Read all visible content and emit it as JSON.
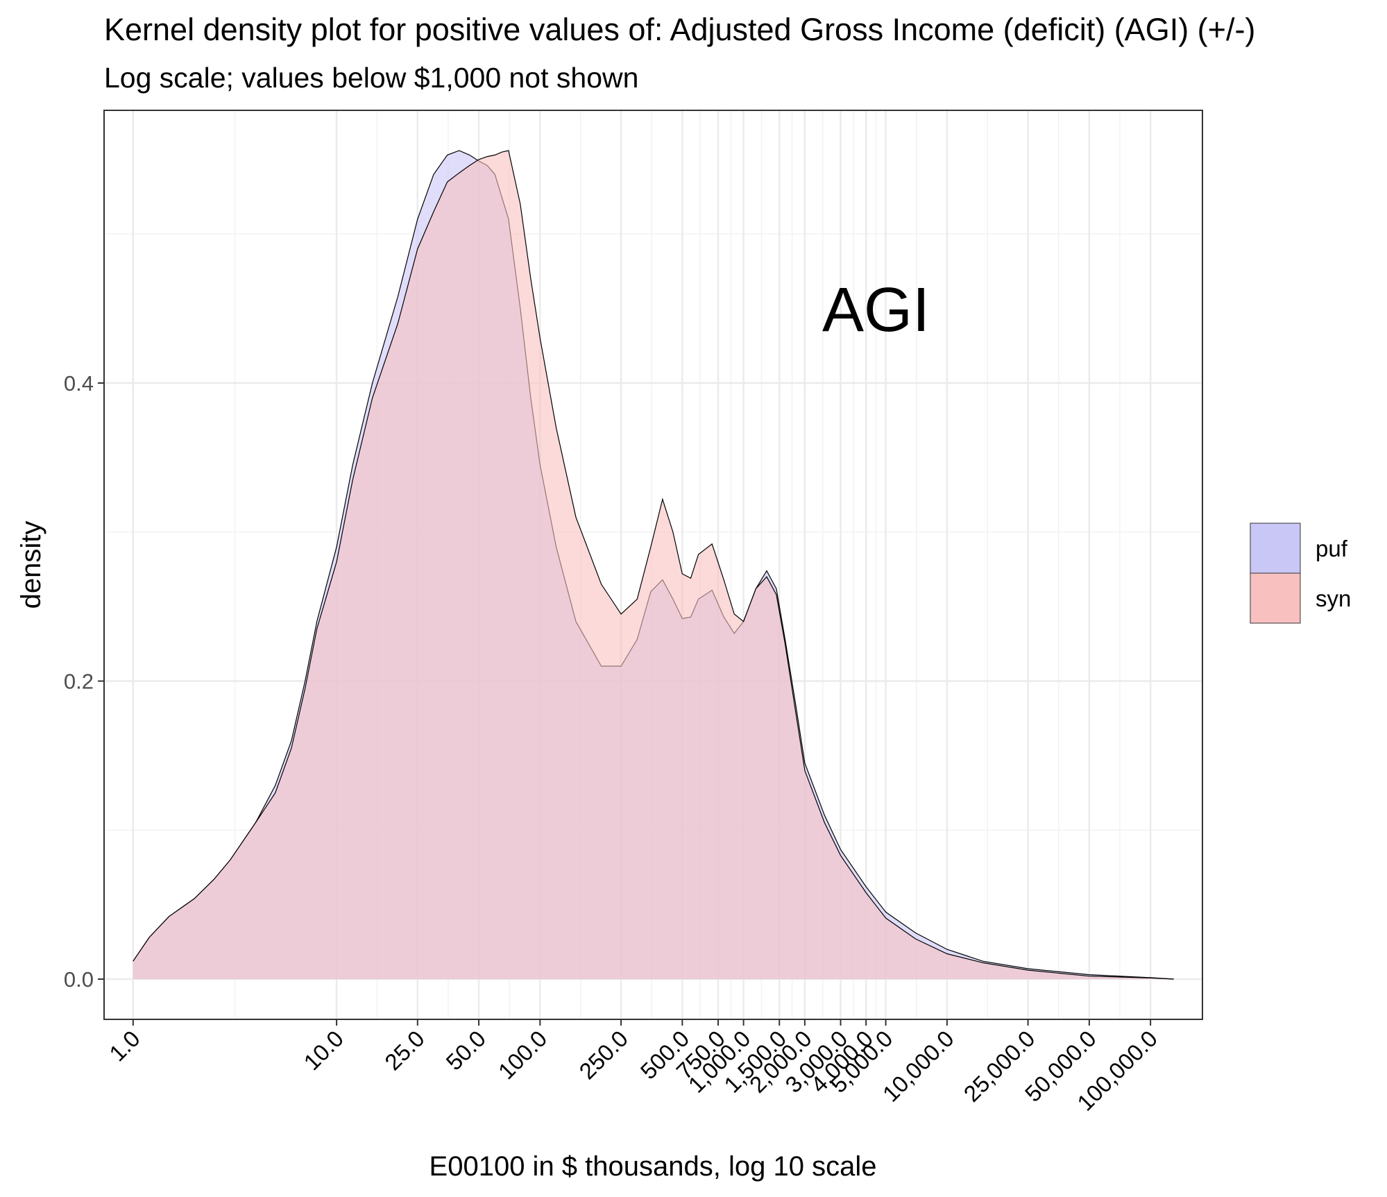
{
  "chart_data": {
    "type": "area",
    "title": "Kernel density plot for positive values of: Adjusted Gross Income (deficit)  (AGI)  (+/-)",
    "subtitle": "Log scale; values below $1,000 not shown",
    "xlabel": "E00100 in $ thousands, log 10 scale",
    "ylabel": "density",
    "x_scale": "log10",
    "xlim": [
      0.72,
      180000
    ],
    "ylim": [
      -0.027,
      0.583
    ],
    "grid": true,
    "legend_position": "right",
    "x_ticks": [
      1,
      10,
      25,
      50,
      100,
      250,
      500,
      750,
      1000,
      1500,
      2000,
      3000,
      4000,
      5000,
      10000,
      25000,
      50000,
      100000
    ],
    "x_tick_labels": [
      "1.0",
      "10.0",
      "25.0",
      "50.0",
      "100.0",
      "250.0",
      "500.0",
      "750.0",
      "1,000.0",
      "1,500.0",
      "2,000.0",
      "3,000.0",
      "4,000.0",
      "5,000.0",
      "10,000.0",
      "25,000.0",
      "50,000.0",
      "100,000.0"
    ],
    "y_ticks": [
      0.0,
      0.2,
      0.4
    ],
    "y_tick_labels": [
      "0.0",
      "0.2",
      "0.4"
    ],
    "annotation": "AGI",
    "series": [
      {
        "name": "puf",
        "color": "#c9c7f6",
        "x": [
          1,
          1.2,
          1.5,
          2,
          2.5,
          3,
          4,
          5,
          6,
          7,
          8,
          10,
          12,
          15,
          20,
          25,
          30,
          35,
          40,
          45,
          50,
          55,
          60,
          70,
          80,
          90,
          100,
          120,
          150,
          200,
          250,
          300,
          350,
          400,
          450,
          500,
          550,
          600,
          700,
          800,
          900,
          1000,
          1150,
          1300,
          1450,
          1600,
          1800,
          2000,
          2500,
          3000,
          4000,
          5000,
          7000,
          10000,
          15000,
          25000,
          50000,
          100000,
          130000
        ],
        "y": [
          0.012,
          0.028,
          0.042,
          0.054,
          0.067,
          0.08,
          0.105,
          0.13,
          0.16,
          0.2,
          0.24,
          0.29,
          0.345,
          0.4,
          0.458,
          0.51,
          0.54,
          0.553,
          0.556,
          0.553,
          0.549,
          0.546,
          0.54,
          0.51,
          0.45,
          0.39,
          0.345,
          0.29,
          0.24,
          0.21,
          0.21,
          0.228,
          0.26,
          0.268,
          0.255,
          0.242,
          0.243,
          0.255,
          0.261,
          0.243,
          0.232,
          0.24,
          0.262,
          0.274,
          0.262,
          0.228,
          0.185,
          0.145,
          0.11,
          0.087,
          0.062,
          0.045,
          0.031,
          0.02,
          0.012,
          0.007,
          0.003,
          0.001,
          0.0
        ]
      },
      {
        "name": "syn",
        "color": "#f8c1bf",
        "x": [
          1,
          1.2,
          1.5,
          2,
          2.5,
          3,
          4,
          5,
          6,
          7,
          8,
          10,
          12,
          15,
          20,
          25,
          30,
          35,
          40,
          45,
          50,
          55,
          60,
          65,
          70,
          80,
          90,
          100,
          120,
          150,
          200,
          250,
          300,
          350,
          400,
          450,
          500,
          550,
          600,
          700,
          800,
          900,
          1000,
          1150,
          1300,
          1450,
          1600,
          1800,
          2000,
          2500,
          3000,
          4000,
          5000,
          7000,
          10000,
          15000,
          25000,
          50000,
          100000,
          130000
        ],
        "y": [
          0.012,
          0.028,
          0.042,
          0.054,
          0.067,
          0.08,
          0.105,
          0.125,
          0.155,
          0.195,
          0.235,
          0.28,
          0.335,
          0.39,
          0.44,
          0.49,
          0.515,
          0.535,
          0.541,
          0.546,
          0.55,
          0.552,
          0.553,
          0.555,
          0.556,
          0.52,
          0.47,
          0.43,
          0.37,
          0.31,
          0.265,
          0.245,
          0.255,
          0.29,
          0.322,
          0.3,
          0.272,
          0.269,
          0.285,
          0.292,
          0.268,
          0.245,
          0.24,
          0.262,
          0.27,
          0.258,
          0.225,
          0.18,
          0.14,
          0.105,
          0.083,
          0.058,
          0.041,
          0.027,
          0.017,
          0.011,
          0.006,
          0.002,
          0.0008,
          0.0
        ]
      }
    ]
  }
}
